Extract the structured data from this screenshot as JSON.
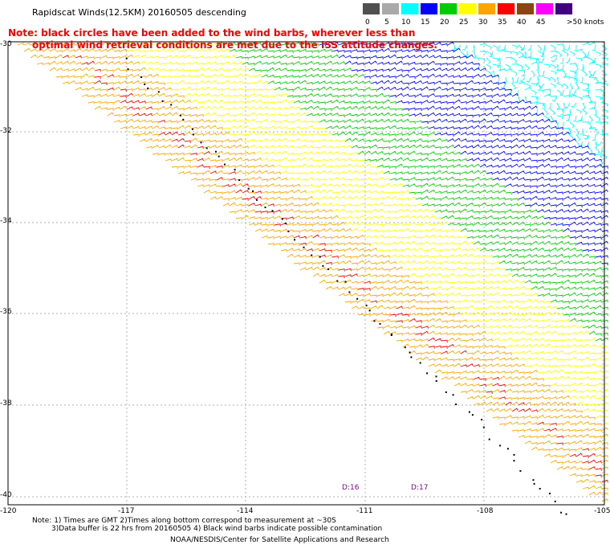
{
  "title": "Rapidscat Winds(12.5KM) 20160505 descending",
  "note": {
    "line1": "Note: black circles have been added to the wind barbs, wherever less than",
    "line2": "optimal wind retrieval conditions are met due to the ISS attitude changes."
  },
  "legend": {
    "labels": [
      "0",
      "5",
      "10",
      "15",
      "20",
      "25",
      "30",
      "35",
      "40",
      "45",
      ">50 knots"
    ],
    "colors": [
      "#505050",
      "#a9a9a9",
      "#00ffff",
      "#0000ff",
      "#00cc00",
      "#ffff00",
      "#ffa500",
      "#ff0000",
      "#8b4513",
      "#ff00ff",
      "#400080"
    ]
  },
  "axes": {
    "lat_labels": [
      "-30",
      "-32",
      "-34",
      "-36",
      "-38",
      "-40"
    ],
    "lon_labels": [
      "-120",
      "-117",
      "-114",
      "-111",
      "-108",
      "-105"
    ]
  },
  "passes": [
    "D:16",
    "D:17"
  ],
  "footer": {
    "line1": "Note: 1) Times are GMT 2)Times along bottom correspond to measurement at ~30S",
    "line2": "3)Data buffer is 22 hrs from 20160505 4) Black wind barbs indicate possible contamination",
    "line3": "NOAA/NESDIS/Center for Satellite Applications and Research"
  }
}
